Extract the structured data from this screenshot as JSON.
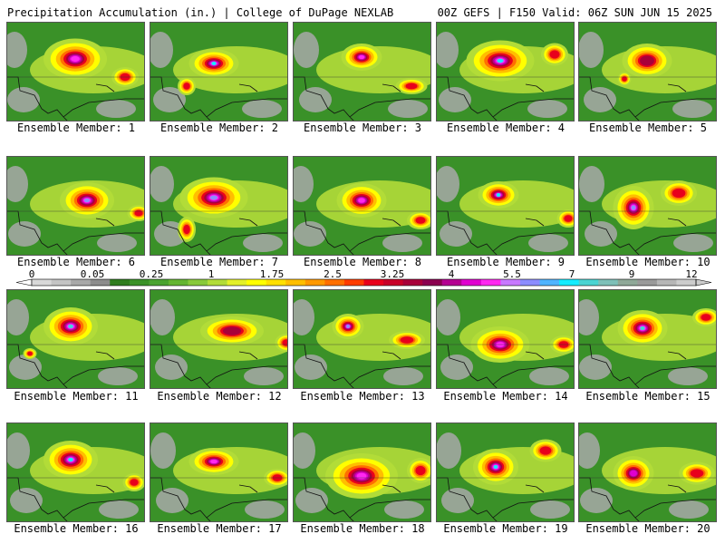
{
  "header": {
    "title": "Precipitation Accumulation (in.) | College of DuPage NEXLAB",
    "run_info": "00Z GEFS | F150 Valid: 06Z SUN JUN 15 2025"
  },
  "colors": {
    "levels": [
      "#d8d8d8",
      "#c4c4c4",
      "#a8a8a8",
      "#8c8c8c",
      "#2f7d1e",
      "#3a9128",
      "#4aa330",
      "#64b531",
      "#88c93a",
      "#b2dc38",
      "#e3f029",
      "#ffff00",
      "#ffe000",
      "#ffbe00",
      "#ff9800",
      "#ff6f00",
      "#ff3c00",
      "#e8001c",
      "#c80028",
      "#a8003a",
      "#8a0050",
      "#b40091",
      "#e000d0",
      "#ff28f0",
      "#c878ff",
      "#8c8cff",
      "#50b4ff",
      "#14ecff",
      "#4ad4d2",
      "#7ec0b8",
      "#8fa898",
      "#9a9a9a",
      "#b6b6b6",
      "#cccccc"
    ]
  },
  "colorbar": {
    "labels": [
      "0",
      "0.05",
      "0.25",
      "1",
      "1.75",
      "2.5",
      "3.25",
      "4",
      "5.5",
      "7",
      "9",
      "12"
    ]
  },
  "panels": [
    {
      "caption": "Ensemble Member: 1"
    },
    {
      "caption": "Ensemble Member: 2"
    },
    {
      "caption": "Ensemble Member: 3"
    },
    {
      "caption": "Ensemble Member: 4"
    },
    {
      "caption": "Ensemble Member: 5"
    },
    {
      "caption": "Ensemble Member: 6"
    },
    {
      "caption": "Ensemble Member: 7"
    },
    {
      "caption": "Ensemble Member: 8"
    },
    {
      "caption": "Ensemble Member: 9"
    },
    {
      "caption": "Ensemble Member: 10"
    },
    {
      "caption": "Ensemble Member: 11"
    },
    {
      "caption": "Ensemble Member: 12"
    },
    {
      "caption": "Ensemble Member: 13"
    },
    {
      "caption": "Ensemble Member: 14"
    },
    {
      "caption": "Ensemble Member: 15"
    },
    {
      "caption": "Ensemble Member: 16"
    },
    {
      "caption": "Ensemble Member: 17"
    },
    {
      "caption": "Ensemble Member: 18"
    },
    {
      "caption": "Ensemble Member: 19"
    },
    {
      "caption": "Ensemble Member: 20"
    }
  ]
}
